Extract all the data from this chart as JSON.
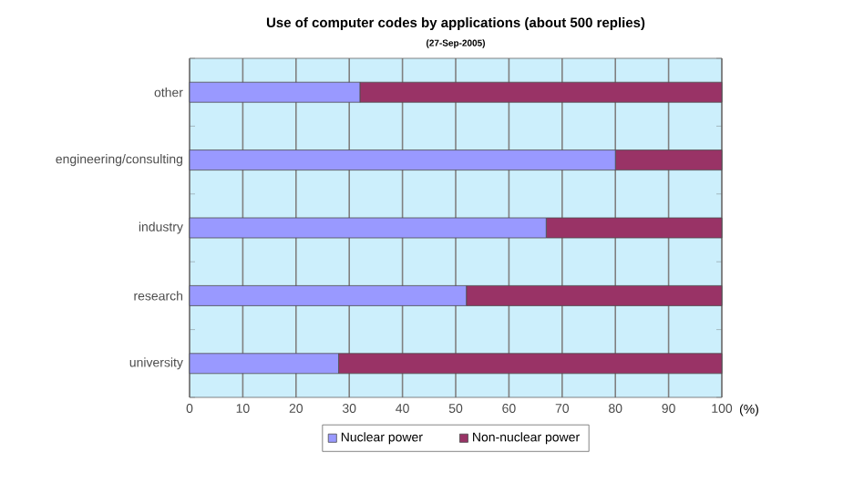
{
  "chart_data": {
    "type": "bar",
    "orientation": "horizontal",
    "stacked": true,
    "title": "Use of computer codes by applications (about 500 replies)",
    "subtitle": "(27-Sep-2005)",
    "xlabel": "(%)",
    "categories": [
      "other",
      "engineering/consulting",
      "industry",
      "research",
      "university"
    ],
    "series": [
      {
        "name": "Nuclear power",
        "color": "#9999ff",
        "values": [
          32,
          80,
          67,
          52,
          28
        ]
      },
      {
        "name": "Non-nuclear power",
        "color": "#993366",
        "values": [
          68,
          20,
          33,
          48,
          72
        ]
      }
    ],
    "xlim": [
      0,
      100
    ],
    "xticks": [
      0,
      10,
      20,
      30,
      40,
      50,
      60,
      70,
      80,
      90,
      100
    ],
    "grid": "x",
    "legend": "bottom"
  }
}
